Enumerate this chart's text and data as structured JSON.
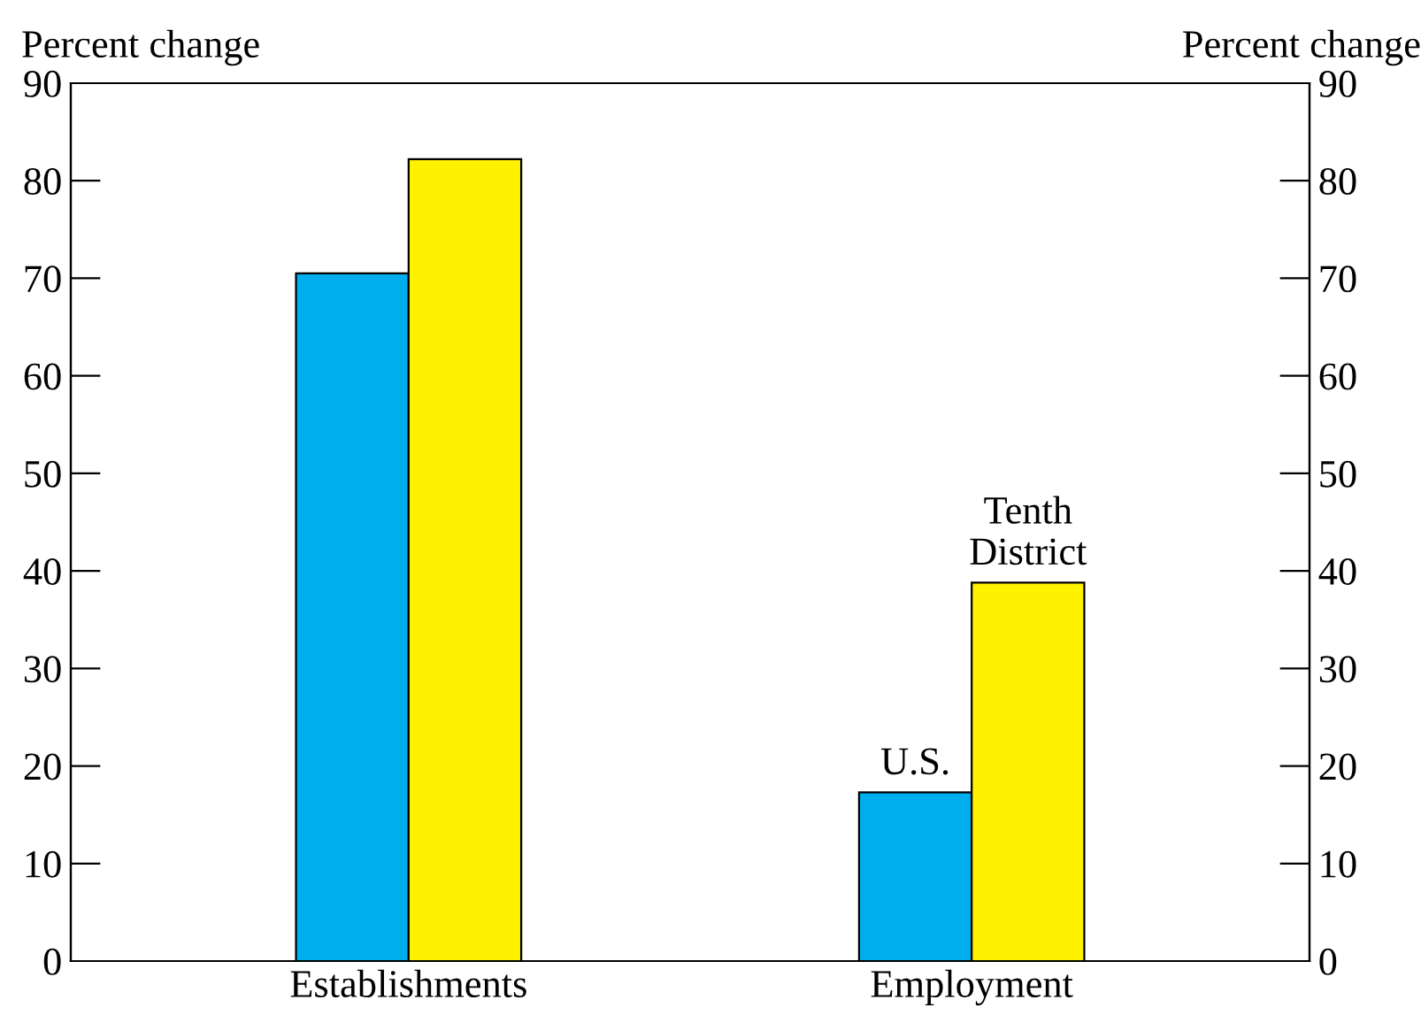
{
  "chart_data": {
    "type": "bar",
    "categories": [
      "Establishments",
      "Employment"
    ],
    "series": [
      {
        "name": "U.S.",
        "color": "#00aeef",
        "values": [
          70.5,
          17.3
        ]
      },
      {
        "name": "Tenth\nDistrict",
        "color": "#fff200",
        "values": [
          82.2,
          38.8
        ]
      }
    ],
    "ylabel": "Percent change",
    "y2label": "Percent change",
    "ylim": [
      0,
      90
    ],
    "yticks": [
      0,
      10,
      20,
      30,
      40,
      50,
      60,
      70,
      80,
      90
    ],
    "y2lim": [
      0,
      90
    ],
    "y2ticks": [
      0,
      10,
      20,
      30,
      40,
      50,
      60,
      70,
      80,
      90
    ],
    "grid": false,
    "legend": false
  }
}
